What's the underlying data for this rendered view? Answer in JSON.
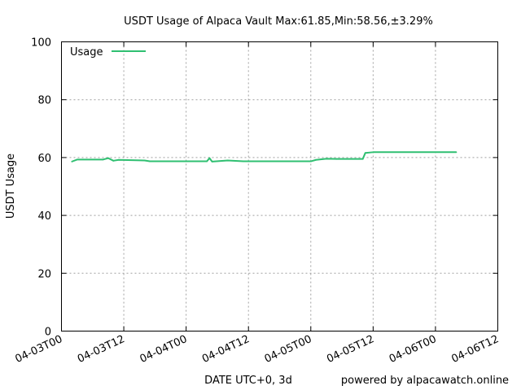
{
  "chart_data": {
    "type": "line",
    "title": "USDT Usage of Alpaca Vault Max:61.85,Min:58.56,±3.29%",
    "xlabel": "DATE UTC+0, 3d",
    "ylabel": "USDT Usage",
    "footer": "powered by alpacawatch.online",
    "ylim": [
      0,
      100
    ],
    "xlim": [
      "2023-04-03T00:00",
      "2023-04-06T12:00"
    ],
    "y_ticks": [
      "0",
      "20",
      "40",
      "60",
      "80",
      "100"
    ],
    "x_ticks": [
      "04-03T00",
      "04-03T12",
      "04-04T00",
      "04-04T12",
      "04-05T00",
      "04-05T12",
      "04-06T00",
      "04-06T12"
    ],
    "grid": true,
    "legend_position": "top-left",
    "series": [
      {
        "name": "Usage",
        "color": "#2fbf71",
        "points": [
          [
            "2023-04-03T02:00",
            58.6
          ],
          [
            "2023-04-03T03:00",
            59.3
          ],
          [
            "2023-04-03T08:00",
            59.3
          ],
          [
            "2023-04-03T09:00",
            59.8
          ],
          [
            "2023-04-03T10:00",
            58.9
          ],
          [
            "2023-04-03T11:00",
            59.2
          ],
          [
            "2023-04-03T16:00",
            59.0
          ],
          [
            "2023-04-03T17:00",
            58.7
          ],
          [
            "2023-04-04T04:00",
            58.7
          ],
          [
            "2023-04-04T04:30",
            59.8
          ],
          [
            "2023-04-04T05:00",
            58.6
          ],
          [
            "2023-04-04T08:00",
            59.0
          ],
          [
            "2023-04-04T11:00",
            58.7
          ],
          [
            "2023-04-05T00:00",
            58.7
          ],
          [
            "2023-04-05T01:00",
            59.2
          ],
          [
            "2023-04-05T03:00",
            59.6
          ],
          [
            "2023-04-05T05:00",
            59.5
          ],
          [
            "2023-04-05T10:00",
            59.5
          ],
          [
            "2023-04-05T10:30",
            61.6
          ],
          [
            "2023-04-05T12:00",
            61.85
          ],
          [
            "2023-04-06T04:00",
            61.85
          ]
        ]
      }
    ]
  }
}
